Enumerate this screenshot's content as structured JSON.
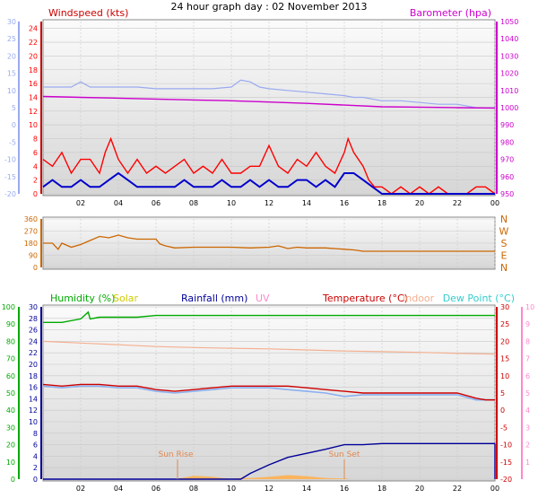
{
  "title": "24 hour graph day : 02 November 2013",
  "colors": {
    "wind": "#ff0000",
    "gust_avg": "#0000cc",
    "baro": "#cc00cc",
    "light_blue": "#9aaaf0",
    "direction": "#cc6600",
    "humidity": "#00aa00",
    "solar": "#cccc00",
    "rain": "#000099",
    "uv": "#ff88cc",
    "temp": "#cc0000",
    "indoor": "#f4b090",
    "dew": "#33cccc",
    "grid": "#c8c8c8",
    "text": "#000000",
    "sunlabel": "#e08850",
    "solar_fill": "#ffb050"
  },
  "x_ticks": [
    "02",
    "04",
    "06",
    "08",
    "10",
    "12",
    "14",
    "16",
    "18",
    "20",
    "22",
    "00"
  ],
  "panel1": {
    "left_title": "Windspeed (kts)",
    "right_title": "Barometer (hpa)",
    "wind_ticks": [
      "0",
      "2",
      "4",
      "6",
      "8",
      "10",
      "12",
      "14",
      "16",
      "18",
      "20",
      "22",
      "24"
    ],
    "outer_ticks": [
      "-20",
      "-15",
      "-10",
      "-5",
      "0",
      "5",
      "10",
      "15",
      "20",
      "25",
      "30"
    ],
    "baro_ticks": [
      "950",
      "960",
      "970",
      "980",
      "990",
      "1000",
      "1010",
      "1020",
      "1030",
      "1040",
      "1050"
    ]
  },
  "panel2": {
    "deg_ticks": [
      "0",
      "90",
      "180",
      "270",
      "360"
    ],
    "compass": [
      "N",
      "W",
      "S",
      "E",
      "N"
    ]
  },
  "panel3": {
    "labels": {
      "humidity": "Humidity (%)",
      "solar": "Solar",
      "rainfall": "Rainfall (mm)",
      "uv": "UV",
      "temperature": "Temperature (°C)",
      "indoor": "Indoor",
      "dew": "Dew Point (°C)"
    },
    "hum_ticks": [
      "0",
      "10",
      "20",
      "30",
      "40",
      "50",
      "60",
      "70",
      "80",
      "90",
      "100"
    ],
    "rain_ticks": [
      "0",
      "2",
      "4",
      "6",
      "8",
      "10",
      "12",
      "14",
      "16",
      "18",
      "20",
      "22",
      "24",
      "26",
      "28",
      "30"
    ],
    "temp_ticks": [
      "-20",
      "-15",
      "-10",
      "-5",
      "0",
      "5",
      "10",
      "15",
      "20",
      "25",
      "30"
    ],
    "uv_ticks": [
      "1",
      "2",
      "3",
      "4",
      "5",
      "6",
      "7",
      "8",
      "9",
      "10"
    ],
    "sun_rise": "Sun Rise",
    "sun_set": "Sun Set"
  },
  "chart_data": [
    {
      "type": "line",
      "name": "wind-baro",
      "xlabel": "",
      "xlim": [
        0,
        24
      ],
      "series": [
        {
          "name": "Windspeed (kts)",
          "axis": "wind",
          "x": [
            0,
            0.5,
            1,
            1.5,
            2,
            2.5,
            3,
            3.3,
            3.6,
            4,
            4.5,
            5,
            5.5,
            6,
            6.5,
            7,
            7.5,
            8,
            8.5,
            9,
            9.5,
            10,
            10.5,
            11,
            11.5,
            12,
            12.5,
            13,
            13.5,
            14,
            14.5,
            15,
            15.5,
            16,
            16.2,
            16.5,
            17,
            17.3,
            17.6,
            18,
            18.5,
            19,
            19.5,
            20,
            20.5,
            21,
            21.5,
            22,
            22.5,
            23,
            23.5,
            24
          ],
          "y": [
            5,
            4,
            6,
            3,
            5,
            5,
            3,
            6,
            8,
            5,
            3,
            5,
            3,
            4,
            3,
            4,
            5,
            3,
            4,
            3,
            5,
            3,
            3,
            4,
            4,
            7,
            4,
            3,
            5,
            4,
            6,
            4,
            3,
            6,
            8,
            6,
            4,
            2,
            1,
            1,
            0,
            1,
            0,
            1,
            0,
            1,
            0,
            0,
            0,
            1,
            1,
            0
          ]
        },
        {
          "name": "Average wind",
          "axis": "wind",
          "x": [
            0,
            0.5,
            1,
            1.5,
            2,
            2.5,
            3,
            3.5,
            4,
            4.5,
            5,
            5.5,
            6,
            6.5,
            7,
            7.5,
            8,
            8.5,
            9,
            9.5,
            10,
            10.5,
            11,
            11.5,
            12,
            12.5,
            13,
            13.5,
            14,
            14.5,
            15,
            15.5,
            16,
            16.5,
            17,
            17.5,
            18,
            18.5,
            19,
            20,
            21,
            22,
            23,
            24
          ],
          "y": [
            1,
            2,
            1,
            1,
            2,
            1,
            1,
            2,
            3,
            2,
            1,
            1,
            1,
            1,
            1,
            2,
            1,
            1,
            1,
            2,
            1,
            1,
            2,
            1,
            2,
            1,
            1,
            2,
            2,
            1,
            2,
            1,
            3,
            3,
            2,
            1,
            0,
            0,
            0,
            0,
            0,
            0,
            0,
            0
          ]
        },
        {
          "name": "Barometer (hpa)",
          "axis": "baro",
          "x": [
            0,
            2,
            4,
            6,
            8,
            10,
            12,
            14,
            16,
            18,
            20,
            22,
            24
          ],
          "y": [
            1006.5,
            1006,
            1005.5,
            1005,
            1004.5,
            1004,
            1003.3,
            1002.5,
            1001.5,
            1000.5,
            1000.3,
            1000,
            999.8
          ]
        },
        {
          "name": "Outer series",
          "axis": "outer",
          "x": [
            0,
            1.5,
            2,
            2.5,
            3,
            4,
            5,
            6,
            7,
            8,
            9,
            10,
            10.5,
            11,
            11.5,
            12,
            13,
            14,
            15,
            16,
            16.5,
            17,
            18,
            19,
            20,
            21,
            22,
            23,
            24
          ],
          "y": [
            11,
            11,
            12.5,
            11,
            11,
            11,
            11,
            10.5,
            10.5,
            10.5,
            10.5,
            11,
            13,
            12.5,
            11,
            10.5,
            10,
            9.5,
            9,
            8.5,
            8,
            8,
            7,
            7,
            6.5,
            6,
            6,
            5,
            5
          ]
        }
      ],
      "wind_ylim": [
        0,
        25
      ],
      "baro_ylim": [
        950,
        1050
      ],
      "outer_ylim": [
        -20,
        30
      ]
    },
    {
      "type": "line",
      "name": "wind-direction",
      "xlim": [
        0,
        24
      ],
      "ylim": [
        0,
        360
      ],
      "series": [
        {
          "name": "Direction",
          "x": [
            0,
            0.5,
            0.8,
            1,
            1.5,
            2,
            2.5,
            3,
            3.5,
            4,
            4.5,
            5,
            5.5,
            6,
            6.2,
            6.5,
            7,
            8,
            9,
            10,
            11,
            12,
            12.5,
            13,
            13.5,
            14,
            15,
            16,
            16.5,
            17,
            18,
            19,
            20,
            21,
            22,
            23,
            24
          ],
          "y": [
            180,
            180,
            135,
            180,
            150,
            170,
            200,
            230,
            220,
            240,
            220,
            210,
            210,
            210,
            175,
            160,
            145,
            150,
            150,
            150,
            145,
            150,
            160,
            140,
            150,
            145,
            145,
            135,
            130,
            120,
            120,
            120,
            120,
            120,
            120,
            120,
            120
          ]
        }
      ]
    },
    {
      "type": "line",
      "name": "humidity-temp-rain",
      "xlim": [
        0,
        24
      ],
      "series": [
        {
          "name": "Humidity (%)",
          "axis": "hum",
          "x": [
            0,
            1,
            2,
            2.4,
            2.5,
            3,
            4,
            5,
            6,
            7,
            8,
            9,
            10,
            11,
            12,
            13,
            14,
            15,
            16,
            17,
            18,
            19,
            20,
            21,
            22,
            23,
            24
          ],
          "y": [
            91,
            91,
            93,
            97,
            93,
            94,
            94,
            94,
            95,
            95,
            95,
            95,
            95,
            95,
            95,
            95,
            95,
            95,
            95,
            95,
            95,
            95,
            95,
            95,
            95,
            95,
            95
          ]
        },
        {
          "name": "Temperature (°C)",
          "axis": "temp",
          "x": [
            0,
            1,
            2,
            3,
            4,
            5,
            6,
            7,
            8,
            9,
            10,
            11,
            12,
            13,
            14,
            15,
            16,
            17,
            18,
            19,
            20,
            21,
            22,
            23,
            23.5,
            24
          ],
          "y": [
            7.5,
            7,
            7.5,
            7.5,
            7,
            7,
            6,
            5.5,
            6,
            6.5,
            7,
            7,
            7,
            7,
            6.5,
            6,
            5.5,
            5,
            5,
            5,
            5,
            5,
            5,
            3.5,
            3,
            3
          ]
        },
        {
          "name": "Dew Point (°C)",
          "axis": "temp",
          "x": [
            0,
            1,
            2,
            3,
            4,
            5,
            6,
            7,
            8,
            9,
            10,
            11,
            12,
            13,
            14,
            15,
            16,
            17,
            18,
            19,
            20,
            21,
            22,
            23,
            23.5,
            24
          ],
          "y": [
            7,
            6.5,
            7,
            7,
            6.5,
            6.5,
            5.5,
            5,
            5.5,
            6,
            6.5,
            6.5,
            6.5,
            6,
            5.5,
            5,
            4,
            4.5,
            4.5,
            4.5,
            4.5,
            4.5,
            4.5,
            3,
            3,
            3
          ]
        },
        {
          "name": "Indoor",
          "axis": "temp",
          "x": [
            0,
            2,
            4,
            6,
            8,
            10,
            12,
            14,
            16,
            18,
            20,
            22,
            24
          ],
          "y": [
            20,
            19.5,
            19,
            18.5,
            18.2,
            18,
            17.8,
            17.5,
            17.2,
            17,
            16.8,
            16.5,
            16.3
          ]
        },
        {
          "name": "Rainfall (mm)",
          "axis": "rain",
          "x": [
            0,
            10.5,
            11,
            12,
            13,
            14,
            15,
            16,
            17,
            18,
            19,
            20,
            21,
            22,
            23,
            24
          ],
          "y": [
            0,
            0,
            1,
            2.5,
            3.8,
            4.5,
            5.2,
            6,
            6,
            6.2,
            6.2,
            6.2,
            6.2,
            6.2,
            6.2,
            6.2
          ]
        },
        {
          "name": "Solar",
          "axis": "rain",
          "x": [
            7.2,
            7.5,
            8,
            8.5,
            9,
            9.5,
            10,
            10.5,
            11,
            12,
            13,
            14,
            15,
            16.2
          ],
          "y": [
            0.1,
            0.3,
            0.6,
            0.5,
            0.4,
            0.2,
            0.1,
            0.2,
            0.2,
            0.4,
            0.7,
            0.5,
            0.2,
            0.1
          ]
        }
      ],
      "hum_ylim": [
        0,
        100
      ],
      "rain_ylim": [
        0,
        30
      ],
      "temp_ylim": [
        -20,
        30
      ]
    }
  ]
}
